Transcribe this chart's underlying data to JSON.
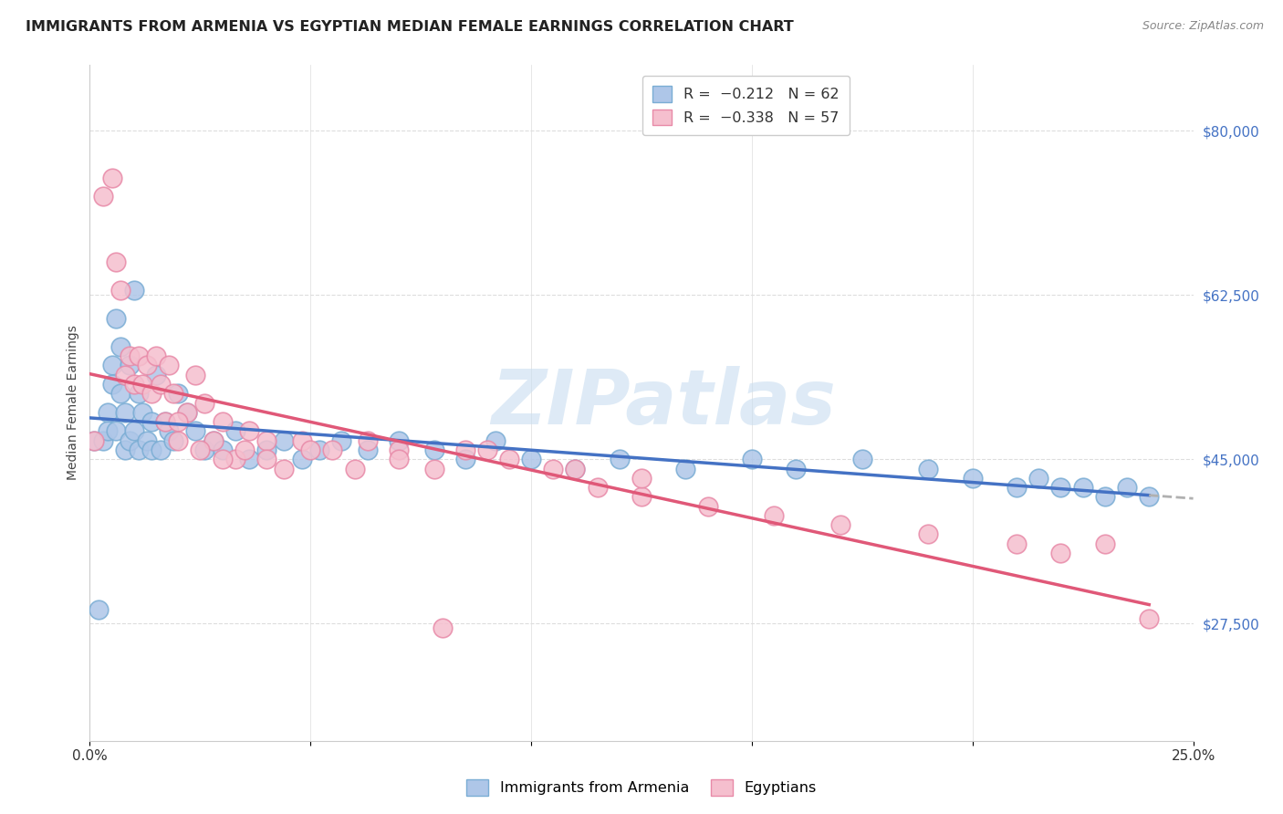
{
  "title": "IMMIGRANTS FROM ARMENIA VS EGYPTIAN MEDIAN FEMALE EARNINGS CORRELATION CHART",
  "source": "Source: ZipAtlas.com",
  "ylabel": "Median Female Earnings",
  "yticks": [
    27500,
    45000,
    62500,
    80000
  ],
  "ytick_labels": [
    "$27,500",
    "$45,000",
    "$62,500",
    "$80,000"
  ],
  "xlim": [
    0.0,
    0.25
  ],
  "ylim": [
    15000,
    87000
  ],
  "color_armenia_fill": "#aec6e8",
  "color_armenia_edge": "#7aadd4",
  "color_egypt_fill": "#f5bfce",
  "color_egypt_edge": "#e88aa8",
  "color_line_armenia": "#4472c4",
  "color_line_egypt": "#e05878",
  "color_line_extrapolate": "#b0b0b0",
  "color_ytick": "#4472c4",
  "color_xtick": "#333333",
  "color_grid": "#dddddd",
  "color_title": "#222222",
  "color_source": "#888888",
  "watermark_text": "ZIPatlas",
  "watermark_color": "#c8ddf0",
  "background_color": "#ffffff",
  "title_fontsize": 11.5,
  "axis_label_fontsize": 10,
  "tick_fontsize": 11,
  "legend_fontsize": 11.5,
  "watermark_fontsize": 60,
  "dot_size": 220,
  "line_width": 2.5,
  "armenia_x": [
    0.001,
    0.002,
    0.003,
    0.004,
    0.004,
    0.005,
    0.005,
    0.006,
    0.006,
    0.007,
    0.007,
    0.008,
    0.008,
    0.009,
    0.009,
    0.01,
    0.01,
    0.011,
    0.011,
    0.012,
    0.013,
    0.014,
    0.014,
    0.015,
    0.016,
    0.017,
    0.018,
    0.019,
    0.02,
    0.022,
    0.024,
    0.026,
    0.028,
    0.03,
    0.033,
    0.036,
    0.04,
    0.044,
    0.048,
    0.052,
    0.057,
    0.063,
    0.07,
    0.078,
    0.085,
    0.092,
    0.1,
    0.11,
    0.12,
    0.135,
    0.15,
    0.16,
    0.175,
    0.19,
    0.2,
    0.21,
    0.215,
    0.22,
    0.225,
    0.23,
    0.235,
    0.24
  ],
  "armenia_y": [
    47000,
    29000,
    47000,
    50000,
    48000,
    55000,
    53000,
    60000,
    48000,
    57000,
    52000,
    46000,
    50000,
    47000,
    55000,
    63000,
    48000,
    52000,
    46000,
    50000,
    47000,
    49000,
    46000,
    54000,
    46000,
    49000,
    48000,
    47000,
    52000,
    50000,
    48000,
    46000,
    47000,
    46000,
    48000,
    45000,
    46000,
    47000,
    45000,
    46000,
    47000,
    46000,
    47000,
    46000,
    45000,
    47000,
    45000,
    44000,
    45000,
    44000,
    45000,
    44000,
    45000,
    44000,
    43000,
    42000,
    43000,
    42000,
    42000,
    41000,
    42000,
    41000
  ],
  "egypt_x": [
    0.001,
    0.003,
    0.005,
    0.006,
    0.007,
    0.008,
    0.009,
    0.01,
    0.011,
    0.012,
    0.013,
    0.014,
    0.015,
    0.016,
    0.017,
    0.018,
    0.019,
    0.02,
    0.022,
    0.024,
    0.026,
    0.028,
    0.03,
    0.033,
    0.036,
    0.04,
    0.044,
    0.048,
    0.055,
    0.063,
    0.07,
    0.078,
    0.085,
    0.095,
    0.105,
    0.115,
    0.125,
    0.14,
    0.155,
    0.17,
    0.19,
    0.21,
    0.22,
    0.23,
    0.24,
    0.11,
    0.125,
    0.09,
    0.08,
    0.07,
    0.06,
    0.05,
    0.04,
    0.035,
    0.03,
    0.025,
    0.02
  ],
  "egypt_y": [
    47000,
    73000,
    75000,
    66000,
    63000,
    54000,
    56000,
    53000,
    56000,
    53000,
    55000,
    52000,
    56000,
    53000,
    49000,
    55000,
    52000,
    47000,
    50000,
    54000,
    51000,
    47000,
    49000,
    45000,
    48000,
    47000,
    44000,
    47000,
    46000,
    47000,
    46000,
    44000,
    46000,
    45000,
    44000,
    42000,
    41000,
    40000,
    39000,
    38000,
    37000,
    36000,
    35000,
    36000,
    28000,
    44000,
    43000,
    46000,
    27000,
    45000,
    44000,
    46000,
    45000,
    46000,
    45000,
    46000,
    49000
  ]
}
